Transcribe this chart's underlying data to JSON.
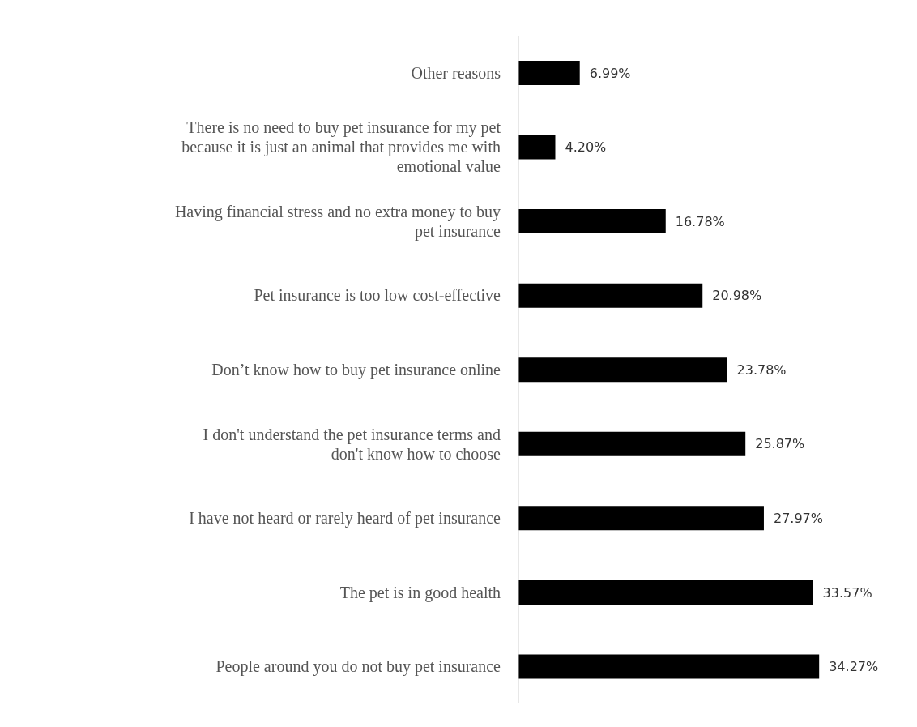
{
  "chart_data": {
    "type": "bar",
    "orientation": "horizontal",
    "categories": [
      "Other reasons",
      "There is no need to buy pet insurance for my pet because it is just an animal that provides me with emotional value",
      "Having financial stress and no extra money to buy pet insurance",
      "Pet insurance is too low cost-effective",
      "Don’t know how to buy pet insurance online",
      "I don't understand the pet insurance terms and don't know how to choose",
      "I have not heard or rarely heard of pet insurance",
      "The pet is in good health ",
      "People around you do not buy pet insurance"
    ],
    "values": [
      6.99,
      4.2,
      16.78,
      20.98,
      23.78,
      25.87,
      27.97,
      33.57,
      34.27
    ],
    "value_labels": [
      "6.99%",
      "4.20%",
      "16.78%",
      "20.98%",
      "23.78%",
      "25.87%",
      "27.97%",
      "33.57%",
      "34.27%"
    ],
    "color": "#000000",
    "tick_labels": "y"
  }
}
